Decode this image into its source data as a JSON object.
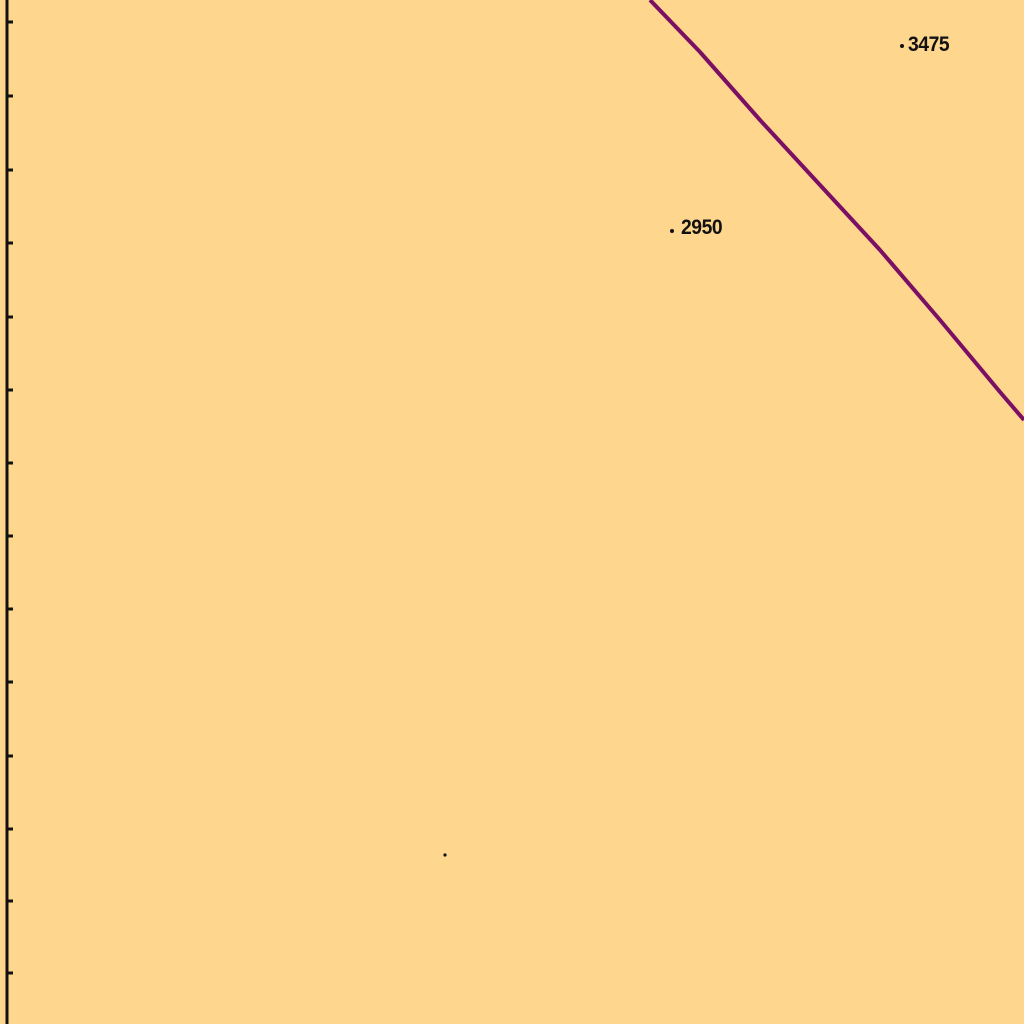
{
  "map": {
    "colors": {
      "land": "#FED68D",
      "boundary_line": "#7A0F63",
      "frame_edge": "#111111",
      "text": "#111111"
    },
    "spot_heights": [
      {
        "name": "spot-height-3475",
        "label": "3475"
      },
      {
        "name": "spot-height-2950",
        "label": "2950"
      }
    ]
  }
}
